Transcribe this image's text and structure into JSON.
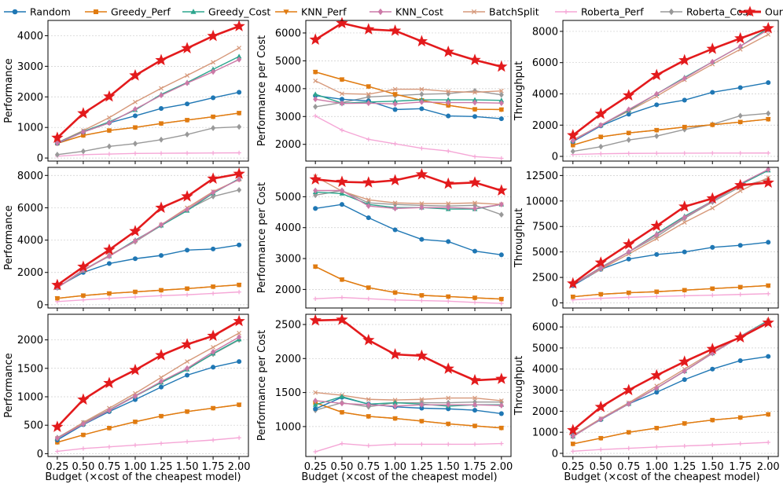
{
  "figure": {
    "xlabel": "Budget (×cost of the cheapest model)",
    "x": [
      0.25,
      0.5,
      0.75,
      1.0,
      1.25,
      1.5,
      1.75,
      2.0
    ],
    "xticks": [
      "0.25",
      "0.50",
      "0.75",
      "1.00",
      "1.25",
      "1.50",
      "1.75",
      "2.00"
    ]
  },
  "legend": [
    {
      "name": "Random",
      "color": "#1f77b4",
      "marker": "circle"
    },
    {
      "name": "Greedy_Perf",
      "color": "#e07b10",
      "marker": "square"
    },
    {
      "name": "Greedy_Cost",
      "color": "#2ca58d",
      "marker": "triangle-up"
    },
    {
      "name": "KNN_Perf",
      "color": "#e07b10",
      "marker": "triangle-down"
    },
    {
      "name": "KNN_Cost",
      "color": "#cc79a7",
      "marker": "diamond"
    },
    {
      "name": "BatchSplit",
      "color": "#d6987a",
      "marker": "x"
    },
    {
      "name": "Roberta_Perf",
      "color": "#f5a6d6",
      "marker": "plus"
    },
    {
      "name": "Roberta_Cost",
      "color": "#999999",
      "marker": "diamond"
    },
    {
      "name": "Ours",
      "color": "#e31a1c",
      "marker": "star"
    }
  ],
  "chart_data": [
    {
      "type": "line",
      "row": 0,
      "col": 0,
      "ylabel": "Performance",
      "ylim": [
        -100,
        4500
      ],
      "yticks": [
        0,
        1000,
        2000,
        3000,
        4000
      ],
      "series": {
        "Random": [
          480,
          850,
          1150,
          1380,
          1620,
          1770,
          1970,
          2150
        ],
        "Greedy_Perf": [
          480,
          740,
          900,
          1000,
          1130,
          1240,
          1350,
          1470
        ],
        "Greedy_Cost": [
          500,
          870,
          1180,
          1570,
          2080,
          2470,
          2900,
          3320
        ],
        "KNN_Perf": [
          480,
          740,
          900,
          1000,
          1130,
          1240,
          1350,
          1470
        ],
        "KNN_Cost": [
          490,
          850,
          1150,
          1600,
          2050,
          2450,
          2820,
          3220
        ],
        "BatchSplit": [
          500,
          900,
          1320,
          1830,
          2280,
          2700,
          3130,
          3600
        ],
        "Roberta_Perf": [
          60,
          110,
          130,
          150,
          155,
          160,
          165,
          170
        ],
        "Roberta_Cost": [
          110,
          220,
          380,
          470,
          600,
          770,
          980,
          1020
        ],
        "Ours": [
          660,
          1460,
          2010,
          2700,
          3200,
          3590,
          3990,
          4310
        ]
      }
    },
    {
      "type": "line",
      "row": 0,
      "col": 1,
      "ylabel": "Performance per Cost",
      "ylim": [
        1400,
        6450
      ],
      "yticks": [
        2000,
        3000,
        4000,
        5000,
        6000
      ],
      "series": {
        "Random": [
          3750,
          3620,
          3560,
          3250,
          3280,
          3020,
          3000,
          2920
        ],
        "Greedy_Perf": [
          4600,
          4330,
          4080,
          3800,
          3580,
          3400,
          3260,
          3250
        ],
        "Greedy_Cost": [
          3800,
          3480,
          3520,
          3550,
          3600,
          3600,
          3600,
          3580
        ],
        "KNN_Perf": [
          4600,
          4330,
          4080,
          3800,
          3580,
          3400,
          3260,
          3250
        ],
        "KNN_Cost": [
          3620,
          3470,
          3480,
          3450,
          3520,
          3500,
          3500,
          3480
        ],
        "BatchSplit": [
          4280,
          3820,
          3800,
          3980,
          3980,
          3900,
          3870,
          3920
        ],
        "Roberta_Perf": [
          3020,
          2510,
          2180,
          2020,
          1860,
          1760,
          1560,
          1500
        ],
        "Roberta_Cost": [
          3350,
          3500,
          3700,
          3750,
          3800,
          3820,
          3920,
          3780
        ],
        "Ours": [
          5760,
          6350,
          6130,
          6080,
          5700,
          5320,
          5030,
          4790
        ]
      }
    },
    {
      "type": "line",
      "row": 0,
      "col": 2,
      "ylabel": "Throughput",
      "ylim": [
        -300,
        8700
      ],
      "yticks": [
        0,
        2000,
        4000,
        6000,
        8000
      ],
      "series": {
        "Random": [
          950,
          1950,
          2700,
          3300,
          3600,
          4100,
          4400,
          4720
        ],
        "Greedy_Perf": [
          720,
          1250,
          1500,
          1680,
          1880,
          2020,
          2200,
          2380
        ],
        "Greedy_Cost": [
          1000,
          2000,
          2950,
          4000,
          5050,
          6050,
          7050,
          8200
        ],
        "KNN_Perf": [
          720,
          1250,
          1500,
          1680,
          1880,
          2020,
          2200,
          2380
        ],
        "KNN_Cost": [
          1000,
          2000,
          3000,
          4000,
          5000,
          6050,
          7050,
          8100
        ],
        "BatchSplit": [
          1050,
          2000,
          2900,
          3850,
          4900,
          5900,
          6850,
          7800
        ],
        "Roberta_Perf": [
          120,
          170,
          190,
          200,
          205,
          210,
          210,
          215
        ],
        "Roberta_Cost": [
          320,
          620,
          1050,
          1300,
          1720,
          2050,
          2600,
          2750
        ],
        "Ours": [
          1350,
          2720,
          3900,
          5200,
          6150,
          6880,
          7550,
          8200
        ]
      }
    },
    {
      "type": "line",
      "row": 1,
      "col": 0,
      "ylabel": "Performance",
      "ylim": [
        -200,
        8500
      ],
      "yticks": [
        0,
        2000,
        4000,
        6000,
        8000
      ],
      "series": {
        "Random": [
          1100,
          2000,
          2550,
          2850,
          3050,
          3380,
          3450,
          3700
        ],
        "Greedy_Perf": [
          400,
          570,
          700,
          800,
          900,
          1000,
          1120,
          1230
        ],
        "Greedy_Cost": [
          1050,
          2150,
          3000,
          4000,
          4900,
          5820,
          6900,
          7800
        ],
        "KNN_Perf": [
          400,
          570,
          700,
          800,
          900,
          1000,
          1120,
          1230
        ],
        "KNN_Cost": [
          1050,
          2150,
          3000,
          3950,
          4950,
          5900,
          6950,
          7750
        ],
        "BatchSplit": [
          1050,
          2100,
          3050,
          3950,
          4950,
          6000,
          7000,
          7750
        ],
        "Roberta_Perf": [
          200,
          300,
          400,
          480,
          560,
          620,
          700,
          790
        ],
        "Roberta_Cost": [
          1050,
          2150,
          3050,
          3900,
          4900,
          5880,
          6700,
          7100
        ],
        "Ours": [
          1220,
          2350,
          3400,
          4550,
          6000,
          6700,
          7800,
          8100
        ]
      }
    },
    {
      "type": "line",
      "row": 1,
      "col": 1,
      "ylabel": "Performance per Cost",
      "ylim": [
        1400,
        5950
      ],
      "yticks": [
        2000,
        3000,
        4000,
        5000
      ],
      "series": {
        "Random": [
          4620,
          4750,
          4320,
          3930,
          3620,
          3550,
          3240,
          3120
        ],
        "Greedy_Perf": [
          2740,
          2320,
          2060,
          1900,
          1810,
          1770,
          1730,
          1690
        ],
        "Greedy_Cost": [
          5150,
          5100,
          4750,
          4650,
          4650,
          4600,
          4600,
          4750
        ],
        "KNN_Perf": [
          2740,
          2320,
          2060,
          1900,
          1810,
          1770,
          1730,
          1690
        ],
        "KNN_Cost": [
          5200,
          5200,
          4700,
          4620,
          4650,
          4650,
          4620,
          4750
        ],
        "BatchSplit": [
          5650,
          5180,
          4900,
          4800,
          4780,
          4780,
          4800,
          4750
        ],
        "Roberta_Perf": [
          1700,
          1740,
          1700,
          1660,
          1640,
          1620,
          1580,
          1550
        ],
        "Roberta_Cost": [
          5050,
          5200,
          4800,
          4750,
          4720,
          4700,
          4720,
          4420
        ],
        "Ours": [
          5560,
          5480,
          5460,
          5530,
          5720,
          5420,
          5460,
          5200
        ]
      }
    },
    {
      "type": "line",
      "row": 1,
      "col": 2,
      "ylabel": "Throughput",
      "ylim": [
        -500,
        13300
      ],
      "yticks": [
        0,
        2500,
        5000,
        7500,
        10000,
        12500
      ],
      "series": {
        "Random": [
          1700,
          3300,
          4300,
          4750,
          5000,
          5450,
          5650,
          5950
        ],
        "Greedy_Perf": [
          600,
          850,
          1000,
          1100,
          1250,
          1400,
          1550,
          1700
        ],
        "Greedy_Cost": [
          1800,
          3400,
          5000,
          6800,
          8500,
          10000,
          11600,
          13000
        ],
        "KNN_Perf": [
          600,
          850,
          1000,
          1100,
          1250,
          1400,
          1550,
          1700
        ],
        "KNN_Cost": [
          1800,
          3400,
          5000,
          6700,
          8400,
          10000,
          11700,
          13100
        ],
        "BatchSplit": [
          1800,
          3300,
          4800,
          6300,
          7900,
          9300,
          11000,
          12300
        ],
        "Roberta_Perf": [
          300,
          450,
          550,
          630,
          700,
          760,
          830,
          900
        ],
        "Roberta_Cost": [
          1800,
          3500,
          5000,
          6500,
          8300,
          9900,
          11400,
          12150
        ],
        "Ours": [
          1900,
          3950,
          5750,
          7550,
          9450,
          10250,
          11550,
          11800
        ]
      }
    },
    {
      "type": "line",
      "row": 2,
      "col": 0,
      "ylabel": "Performance",
      "ylim": [
        -50,
        2450
      ],
      "yticks": [
        0,
        500,
        1000,
        1500,
        2000
      ],
      "series": {
        "Random": [
          240,
          510,
          740,
          950,
          1170,
          1380,
          1520,
          1620
        ],
        "Greedy_Perf": [
          200,
          330,
          450,
          560,
          660,
          740,
          800,
          860
        ],
        "Greedy_Cost": [
          270,
          520,
          760,
          1010,
          1250,
          1480,
          1760,
          2010
        ],
        "KNN_Perf": [
          200,
          330,
          450,
          560,
          660,
          740,
          800,
          860
        ],
        "KNN_Cost": [
          270,
          520,
          760,
          1010,
          1270,
          1500,
          1790,
          2050
        ],
        "BatchSplit": [
          270,
          550,
          800,
          1060,
          1340,
          1620,
          1870,
          2120
        ],
        "Roberta_Perf": [
          40,
          90,
          120,
          150,
          180,
          210,
          240,
          280
        ],
        "Roberta_Cost": [
          280,
          540,
          770,
          1020,
          1260,
          1490,
          1750,
          2000
        ],
        "Ours": [
          470,
          950,
          1240,
          1470,
          1730,
          1920,
          2070,
          2330
        ]
      }
    },
    {
      "type": "line",
      "row": 2,
      "col": 1,
      "ylabel": "Performance per Cost",
      "ylim": [
        560,
        2650
      ],
      "yticks": [
        1000,
        1500,
        2000,
        2500
      ],
      "series": {
        "Random": [
          1260,
          1430,
          1330,
          1290,
          1270,
          1260,
          1240,
          1190
        ],
        "Greedy_Perf": [
          1350,
          1210,
          1150,
          1120,
          1080,
          1040,
          1010,
          980
        ],
        "Greedy_Cost": [
          1320,
          1440,
          1330,
          1350,
          1330,
          1300,
          1320,
          1320
        ],
        "KNN_Perf": [
          1350,
          1210,
          1150,
          1120,
          1080,
          1040,
          1010,
          980
        ],
        "KNN_Cost": [
          1380,
          1340,
          1320,
          1300,
          1320,
          1320,
          1320,
          1310
        ],
        "BatchSplit": [
          1500,
          1460,
          1400,
          1390,
          1400,
          1420,
          1420,
          1380
        ],
        "Roberta_Perf": [
          630,
          750,
          720,
          740,
          740,
          740,
          740,
          750
        ],
        "Roberta_Cost": [
          1240,
          1350,
          1290,
          1350,
          1350,
          1350,
          1360,
          1360
        ],
        "Ours": [
          2560,
          2570,
          2270,
          2060,
          2040,
          1850,
          1680,
          1700
        ]
      }
    },
    {
      "type": "line",
      "row": 2,
      "col": 2,
      "ylabel": "Throughput",
      "ylim": [
        -150,
        6600
      ],
      "yticks": [
        0,
        1000,
        2000,
        3000,
        4000,
        5000,
        6000
      ],
      "series": {
        "Random": [
          850,
          1600,
          2350,
          2900,
          3500,
          4000,
          4400,
          4600
        ],
        "Greedy_Perf": [
          450,
          720,
          1000,
          1200,
          1420,
          1580,
          1700,
          1850
        ],
        "Greedy_Cost": [
          800,
          1620,
          2350,
          3100,
          3900,
          4750,
          5550,
          6300
        ],
        "KNN_Perf": [
          450,
          720,
          1000,
          1200,
          1420,
          1580,
          1700,
          1850
        ],
        "KNN_Cost": [
          800,
          1620,
          2350,
          3100,
          3900,
          4750,
          5550,
          6250
        ],
        "BatchSplit": [
          850,
          1650,
          2400,
          3200,
          4000,
          4800,
          5550,
          6300
        ],
        "Roberta_Perf": [
          100,
          180,
          240,
          300,
          350,
          400,
          460,
          520
        ],
        "Roberta_Cost": [
          800,
          1620,
          2350,
          3100,
          3900,
          4750,
          5550,
          6300
        ],
        "Ours": [
          1100,
          2200,
          3000,
          3700,
          4350,
          4950,
          5500,
          6200
        ]
      }
    }
  ]
}
